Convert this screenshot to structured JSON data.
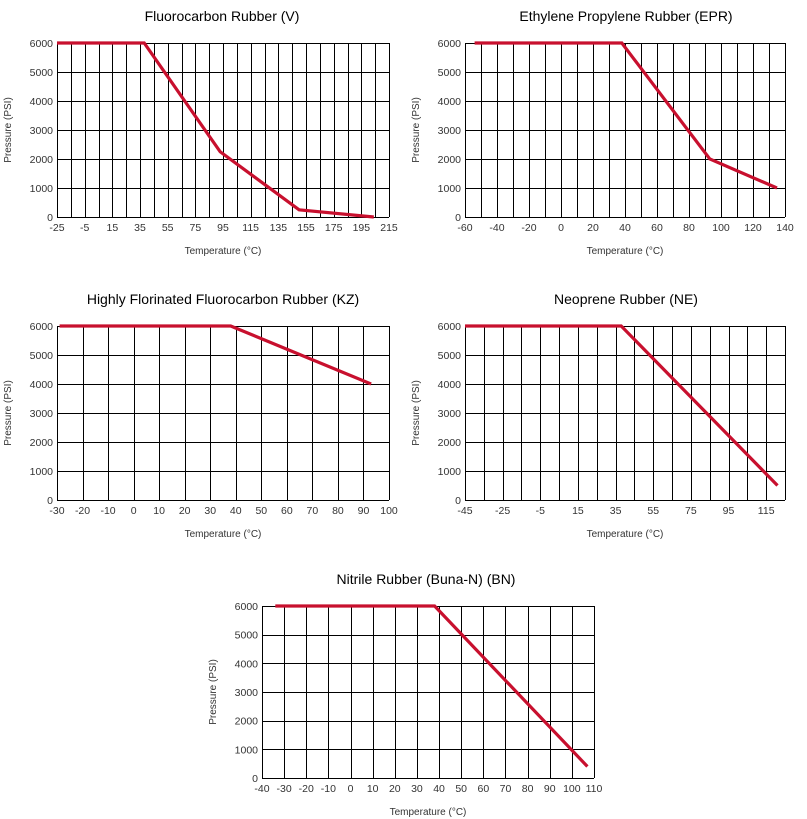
{
  "colors": {
    "curve": "#c8102e",
    "grid": "#000000",
    "background": "#ffffff"
  },
  "chart_data": [
    {
      "type": "line",
      "title": "Fluorocarbon Rubber (V)",
      "xlabel": "Temperature (°C)",
      "ylabel": "Pressure (PSI)",
      "xlim": [
        -25,
        215
      ],
      "ylim": [
        0,
        6000
      ],
      "x_ticks": [
        -25,
        -5,
        15,
        35,
        55,
        75,
        95,
        115,
        135,
        155,
        175,
        195,
        215
      ],
      "x_tick_labels": [
        "-25",
        "-5",
        "15",
        "35",
        "55",
        "75",
        "95",
        "115",
        "135",
        "155",
        "175",
        "195",
        "215"
      ],
      "x_grid": [
        -25,
        -15,
        -5,
        5,
        15,
        25,
        35,
        45,
        55,
        65,
        75,
        85,
        95,
        105,
        115,
        125,
        135,
        145,
        155,
        165,
        175,
        185,
        195,
        205,
        215
      ],
      "y_ticks": [
        0,
        1000,
        2000,
        3000,
        4000,
        5000,
        6000
      ],
      "y_tick_labels": [
        "0",
        "1000",
        "2000",
        "3000",
        "4000",
        "5000",
        "6000"
      ],
      "grid": true,
      "series": [
        {
          "x": [
            -25,
            38,
            93,
            150,
            204
          ],
          "y": [
            6000,
            6000,
            2250,
            250,
            0
          ]
        }
      ]
    },
    {
      "type": "line",
      "title": "Ethylene Propylene Rubber (EPR)",
      "xlabel": "Temperature (°C)",
      "ylabel": "Pressure (PSI)",
      "xlim": [
        -60,
        140
      ],
      "ylim": [
        0,
        6000
      ],
      "x_ticks": [
        -60,
        -40,
        -20,
        0,
        20,
        40,
        60,
        80,
        100,
        120,
        140
      ],
      "x_tick_labels": [
        "-60",
        "-40",
        "-20",
        "0",
        "20",
        "40",
        "60",
        "80",
        "100",
        "120",
        "140"
      ],
      "x_grid": [
        -60,
        -50,
        -40,
        -30,
        -20,
        -10,
        0,
        10,
        20,
        30,
        40,
        50,
        60,
        70,
        80,
        90,
        100,
        110,
        120,
        130,
        140
      ],
      "y_ticks": [
        0,
        1000,
        2000,
        3000,
        4000,
        5000,
        6000
      ],
      "y_tick_labels": [
        "0",
        "1000",
        "2000",
        "3000",
        "4000",
        "5000",
        "6000"
      ],
      "grid": true,
      "series": [
        {
          "x": [
            -54,
            38,
            93,
            135
          ],
          "y": [
            6000,
            6000,
            2000,
            1000
          ]
        }
      ]
    },
    {
      "type": "line",
      "title": "Highly Florinated Fluorocarbon Rubber (KZ)",
      "xlabel": "Temperature (°C)",
      "ylabel": "Pressure (PSI)",
      "xlim": [
        -30,
        100
      ],
      "ylim": [
        0,
        6000
      ],
      "x_ticks": [
        -30,
        -20,
        -10,
        0,
        10,
        20,
        30,
        40,
        50,
        60,
        70,
        80,
        90,
        100
      ],
      "x_tick_labels": [
        "-30",
        "-20",
        "-10",
        "0",
        "10",
        "20",
        "30",
        "40",
        "50",
        "60",
        "70",
        "80",
        "90",
        "100"
      ],
      "x_grid": [
        -30,
        -20,
        -10,
        0,
        10,
        20,
        30,
        40,
        50,
        60,
        70,
        80,
        90,
        100
      ],
      "y_ticks": [
        0,
        1000,
        2000,
        3000,
        4000,
        5000,
        6000
      ],
      "y_tick_labels": [
        "0",
        "1000",
        "2000",
        "3000",
        "4000",
        "5000",
        "6000"
      ],
      "grid": true,
      "series": [
        {
          "x": [
            -29,
            38,
            93
          ],
          "y": [
            6000,
            6000,
            4000
          ]
        }
      ]
    },
    {
      "type": "line",
      "title": "Neoprene Rubber (NE)",
      "xlabel": "Temperature (°C)",
      "ylabel": "Pressure (PSI)",
      "xlim": [
        -45,
        125
      ],
      "ylim": [
        0,
        6000
      ],
      "x_ticks": [
        -45,
        -25,
        -5,
        15,
        35,
        55,
        75,
        95,
        115
      ],
      "x_tick_labels": [
        "-45",
        "-25",
        "-5",
        "15",
        "35",
        "55",
        "75",
        "95",
        "115"
      ],
      "x_grid": [
        -45,
        -35,
        -25,
        -15,
        -5,
        5,
        15,
        25,
        35,
        45,
        55,
        65,
        75,
        85,
        95,
        105,
        115,
        125
      ],
      "y_ticks": [
        0,
        1000,
        2000,
        3000,
        4000,
        5000,
        6000
      ],
      "y_tick_labels": [
        "0",
        "1000",
        "2000",
        "3000",
        "4000",
        "5000",
        "6000"
      ],
      "grid": true,
      "series": [
        {
          "x": [
            -45,
            38,
            121
          ],
          "y": [
            6000,
            6000,
            500
          ]
        }
      ]
    },
    {
      "type": "line",
      "title": "Nitrile Rubber (Buna-N) (BN)",
      "xlabel": "Temperature (°C)",
      "ylabel": "Pressure (PSI)",
      "xlim": [
        -40,
        110
      ],
      "ylim": [
        0,
        6000
      ],
      "x_ticks": [
        -40,
        -30,
        -20,
        -10,
        0,
        10,
        20,
        30,
        40,
        50,
        60,
        70,
        80,
        90,
        100,
        110
      ],
      "x_tick_labels": [
        "-40",
        "-30",
        "-20",
        "-10",
        "0",
        "10",
        "20",
        "30",
        "40",
        "50",
        "60",
        "70",
        "80",
        "90",
        "100",
        "110"
      ],
      "x_grid": [
        -40,
        -30,
        -20,
        -10,
        0,
        10,
        20,
        30,
        40,
        50,
        60,
        70,
        80,
        90,
        100,
        110
      ],
      "y_ticks": [
        0,
        1000,
        2000,
        3000,
        4000,
        5000,
        6000
      ],
      "y_tick_labels": [
        "0",
        "1000",
        "2000",
        "3000",
        "4000",
        "5000",
        "6000"
      ],
      "grid": true,
      "series": [
        {
          "x": [
            -34,
            38,
            107
          ],
          "y": [
            6000,
            6000,
            400
          ]
        }
      ]
    }
  ]
}
